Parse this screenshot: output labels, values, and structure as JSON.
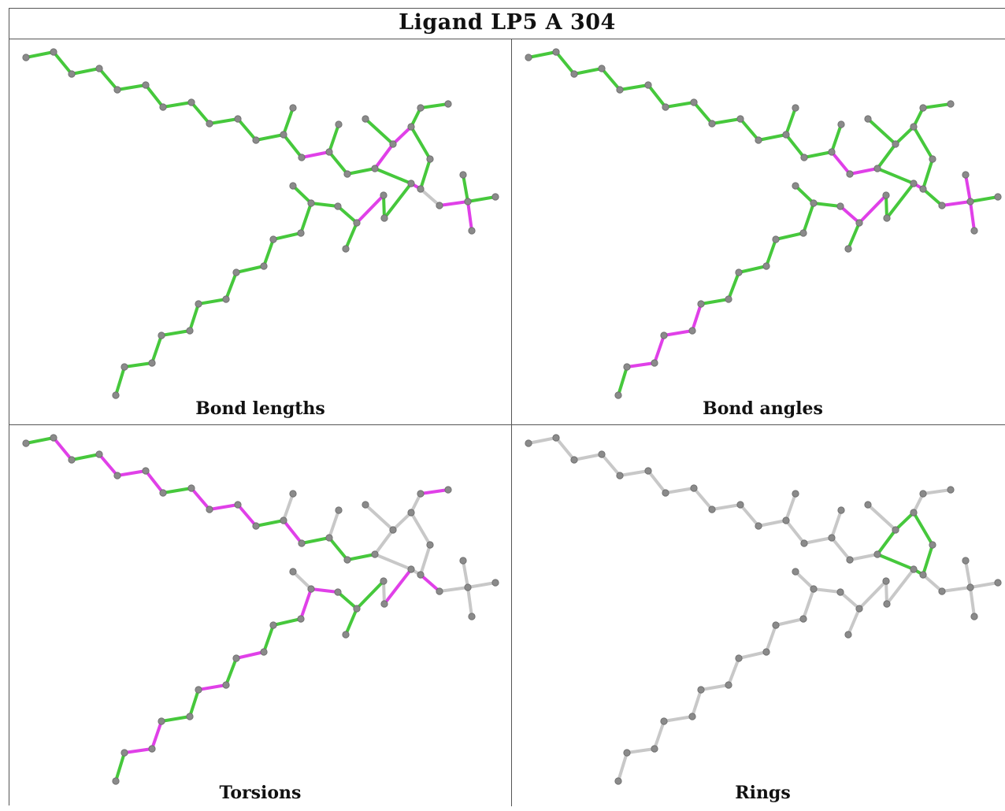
{
  "title": "Ligand LP5 A 304",
  "colors": {
    "outlier": "#e040e8",
    "ok": "#46c83c",
    "neutral": "#c8c8c8",
    "atom": "#8a8a8a"
  },
  "panels": [
    {
      "caption": "Bond lengths"
    },
    {
      "caption": "Bond angles"
    },
    {
      "caption": "Torsions"
    },
    {
      "caption": "Rings"
    }
  ]
}
